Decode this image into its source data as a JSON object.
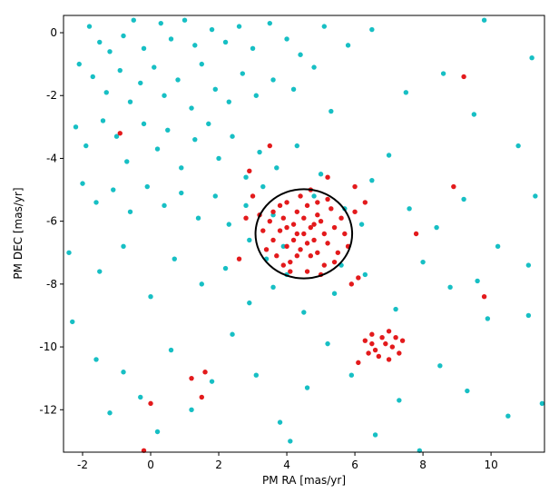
{
  "chart_data": {
    "type": "scatter",
    "xlabel": "PM RA [mas/yr]",
    "ylabel": "PM DEC [mas/yr]",
    "xlim": [
      -2.56,
      11.57
    ],
    "ylim": [
      -13.35,
      0.55
    ],
    "xticks": [
      -2,
      0,
      2,
      4,
      6,
      8,
      10
    ],
    "yticks": [
      0,
      -2,
      -4,
      -6,
      -8,
      -10,
      -12
    ],
    "circle": {
      "center": [
        4.5,
        -6.4
      ],
      "radius": 1.42,
      "color": "#000000"
    },
    "series": [
      {
        "color": "#17bfc4",
        "x": [
          -1.8,
          -1.5,
          -1.2,
          -0.8,
          -0.5,
          -0.2,
          0.3,
          0.6,
          1.0,
          1.3,
          1.8,
          2.2,
          2.6,
          3.0,
          3.5,
          4.0,
          4.4,
          5.1,
          5.8,
          6.5,
          -2.1,
          -1.7,
          -1.3,
          -0.9,
          -0.6,
          -0.3,
          0.1,
          0.4,
          0.8,
          1.2,
          1.5,
          1.9,
          2.3,
          2.7,
          3.1,
          3.6,
          4.2,
          4.8,
          5.3,
          -2.2,
          -1.9,
          -1.4,
          -1.0,
          -0.7,
          -0.2,
          0.2,
          0.5,
          0.9,
          1.3,
          1.7,
          2.0,
          2.4,
          2.8,
          3.2,
          3.7,
          4.3,
          5.0,
          -2.0,
          -1.6,
          -1.1,
          -0.6,
          -0.1,
          0.4,
          0.9,
          1.4,
          1.9,
          2.3,
          2.8,
          3.3,
          3.6,
          -2.4,
          -1.5,
          -0.8,
          0.0,
          0.7,
          1.5,
          2.2,
          2.9,
          3.6,
          4.5,
          5.4,
          6.3,
          7.2,
          8.0,
          8.8,
          9.6,
          10.2,
          11.1,
          11.3,
          10.8,
          9.5,
          8.6,
          7.5,
          7.0,
          6.5,
          7.6,
          8.4,
          9.2,
          9.8,
          11.2,
          -2.3,
          -1.6,
          -0.8,
          -0.3,
          0.6,
          1.2,
          1.8,
          2.4,
          3.1,
          3.8,
          4.6,
          5.2,
          5.9,
          6.6,
          7.3,
          7.9,
          8.5,
          9.3,
          9.9,
          10.5,
          11.1,
          11.5,
          -1.2,
          0.2,
          4.1,
          3.9,
          5.7,
          3.4,
          5.6,
          4.8,
          6.2,
          2.9,
          4.0
        ],
        "values": [
          0.2,
          -0.3,
          -0.6,
          -0.1,
          0.4,
          -0.5,
          0.3,
          -0.2,
          0.4,
          -0.4,
          0.1,
          -0.3,
          0.2,
          -0.5,
          0.3,
          -0.2,
          -0.7,
          0.2,
          -0.4,
          0.1,
          -1.0,
          -1.4,
          -1.9,
          -1.2,
          -2.2,
          -1.6,
          -1.1,
          -2.0,
          -1.5,
          -2.4,
          -1.0,
          -1.8,
          -2.2,
          -1.3,
          -2.0,
          -1.5,
          -1.8,
          -1.1,
          -2.5,
          -3.0,
          -3.6,
          -2.8,
          -3.3,
          -4.1,
          -2.9,
          -3.7,
          -3.1,
          -4.3,
          -3.4,
          -2.9,
          -4.0,
          -3.3,
          -4.6,
          -3.8,
          -4.3,
          -3.6,
          -4.5,
          -4.8,
          -5.4,
          -5.0,
          -5.7,
          -4.9,
          -5.5,
          -5.1,
          -5.9,
          -5.2,
          -6.1,
          -5.5,
          -4.9,
          -5.8,
          -7.0,
          -7.6,
          -6.8,
          -8.4,
          -7.2,
          -8.0,
          -7.5,
          -8.6,
          -8.1,
          -8.9,
          -8.3,
          -7.7,
          -8.8,
          -7.3,
          -8.1,
          -7.9,
          -6.8,
          -7.4,
          -5.2,
          -3.6,
          -2.6,
          -1.3,
          -1.9,
          -3.9,
          -4.7,
          -5.6,
          -6.2,
          -5.3,
          0.4,
          -0.8,
          -9.2,
          -10.4,
          -10.8,
          -11.6,
          -10.1,
          -12.0,
          -11.1,
          -9.6,
          -10.9,
          -12.4,
          -11.3,
          -9.9,
          -10.9,
          -12.8,
          -11.7,
          -13.3,
          -10.6,
          -11.4,
          -9.1,
          -12.2,
          -9.0,
          -11.8,
          -12.1,
          -12.7,
          -13.0,
          -6.8,
          -5.6,
          -7.2,
          -7.4,
          -5.2,
          -6.1,
          -6.6,
          -7.7
        ]
      },
      {
        "color": "#e31a1c",
        "x": [
          4.5,
          4.2,
          4.8,
          4.0,
          5.0,
          4.3,
          4.7,
          3.8,
          5.2,
          4.4,
          4.9,
          3.9,
          5.4,
          4.1,
          4.6,
          3.6,
          5.5,
          4.0,
          5.1,
          3.5,
          4.6,
          5.3,
          3.7,
          5.7,
          4.3,
          4.7,
          4.5,
          4.9,
          4.2,
          4.8,
          3.4,
          5.6,
          4.4,
          5.0,
          3.8,
          4.9,
          3.3,
          5.8,
          4.1,
          3.9,
          5.2,
          4.6,
          4.3,
          5.1,
          3.6,
          4.0,
          5.4,
          4.7,
          3.2,
          6.0,
          2.8,
          2.6,
          3.0,
          6.3,
          6.1,
          5.9,
          2.9,
          5.2,
          3.5,
          6.0,
          7.8,
          8.9,
          9.2,
          9.8,
          -0.9,
          0.0,
          -0.2,
          1.2,
          1.6,
          1.5,
          6.3,
          6.5,
          6.6,
          6.8,
          6.9,
          7.0,
          7.1,
          7.2,
          6.4,
          6.7,
          7.3,
          6.1,
          6.5,
          7.4,
          7.0
        ],
        "values": [
          -6.4,
          -6.1,
          -6.6,
          -6.8,
          -6.0,
          -5.7,
          -7.1,
          -6.3,
          -6.7,
          -6.9,
          -5.8,
          -5.9,
          -6.2,
          -7.3,
          -5.5,
          -6.6,
          -7.0,
          -5.4,
          -7.4,
          -6.0,
          -7.6,
          -5.6,
          -7.1,
          -6.4,
          -6.4,
          -6.2,
          -5.9,
          -7.0,
          -6.6,
          -6.1,
          -6.9,
          -5.9,
          -5.2,
          -7.7,
          -5.5,
          -5.4,
          -6.3,
          -6.8,
          -7.6,
          -7.4,
          -5.3,
          -6.7,
          -7.1,
          -6.4,
          -5.7,
          -6.2,
          -7.3,
          -5.0,
          -5.8,
          -5.7,
          -5.9,
          -7.2,
          -5.2,
          -5.4,
          -7.8,
          -8.0,
          -4.4,
          -4.6,
          -3.6,
          -4.9,
          -6.4,
          -4.9,
          -1.4,
          -8.4,
          -3.2,
          -11.8,
          -13.3,
          -11.0,
          -10.8,
          -11.6,
          -9.8,
          -9.6,
          -10.1,
          -9.7,
          -9.9,
          -9.5,
          -10.0,
          -9.7,
          -10.2,
          -10.3,
          -10.2,
          -10.5,
          -9.9,
          -9.8,
          -10.4
        ]
      }
    ]
  }
}
